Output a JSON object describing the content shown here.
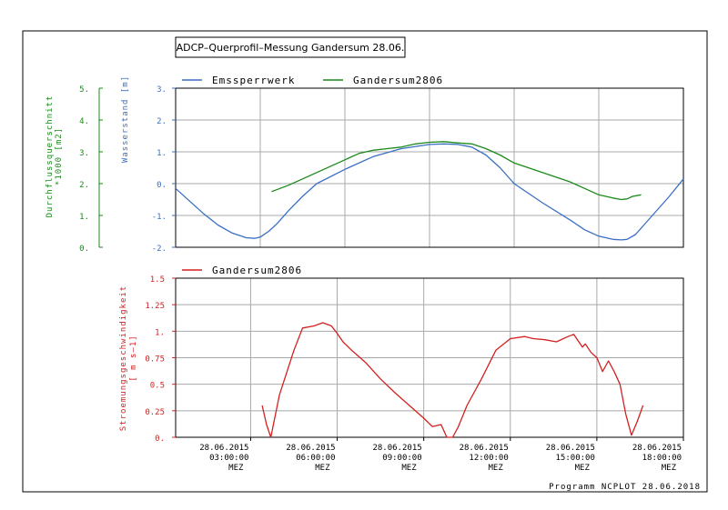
{
  "title": "ADCP–Querprofil–Messung  Gandersum  28.06.",
  "footer": "Programm NCPLOT  28.06.2018",
  "colors": {
    "blue": "#3a6fc4",
    "green": "#1a8a1a",
    "red": "#d42020",
    "grid": "#a8a8a8",
    "axis": "#000000"
  },
  "x_ticks": [
    {
      "date": "28.06.2015",
      "time": "03:00:00",
      "zone": "MEZ"
    },
    {
      "date": "28.06.2015",
      "time": "06:00:00",
      "zone": "MEZ"
    },
    {
      "date": "28.06.2015",
      "time": "09:00:00",
      "zone": "MEZ"
    },
    {
      "date": "28.06.2015",
      "time": "12:00:00",
      "zone": "MEZ"
    },
    {
      "date": "28.06.2015",
      "time": "15:00:00",
      "zone": "MEZ"
    },
    {
      "date": "28.06.2015",
      "time": "18:00:00",
      "zone": "MEZ"
    }
  ],
  "chart_data": [
    {
      "type": "line",
      "xlabel": "",
      "x_unit": "hours of 28.06.2015",
      "xlim": [
        0.0,
        18.0
      ],
      "ylabel": "Wasserstand [m]",
      "ylim": [
        -2,
        3
      ],
      "y_ticks": [
        "-2.",
        "-1.",
        "0.",
        "1.",
        "2.",
        "3."
      ],
      "y2label_line1": "Durchflussquerschnitt",
      "y2label_line2": "*1000 [m2]",
      "y2lim": [
        0,
        5
      ],
      "y2_ticks": [
        "0.",
        "1.",
        "2.",
        "3.",
        "4.",
        "5."
      ],
      "legend_position": "top-left",
      "grid": true,
      "series": [
        {
          "name": "Emssperrwerk",
          "color": "#3a6fc4",
          "axis": "left",
          "x": [
            0.0,
            0.5,
            1.0,
            1.5,
            2.0,
            2.5,
            2.8,
            3.0,
            3.3,
            3.6,
            4.0,
            4.5,
            5.0,
            6.0,
            7.0,
            8.0,
            9.0,
            9.5,
            10.0,
            10.5,
            11.0,
            11.5,
            12.0,
            13.0,
            14.0,
            14.5,
            15.0,
            15.5,
            15.8,
            16.0,
            16.3,
            16.6,
            17.0,
            17.5,
            18.0
          ],
          "y": [
            -0.15,
            -0.55,
            -0.95,
            -1.3,
            -1.55,
            -1.7,
            -1.72,
            -1.68,
            -1.5,
            -1.25,
            -0.85,
            -0.4,
            0.0,
            0.45,
            0.85,
            1.1,
            1.23,
            1.25,
            1.23,
            1.15,
            0.9,
            0.5,
            0.0,
            -0.6,
            -1.15,
            -1.45,
            -1.65,
            -1.75,
            -1.77,
            -1.75,
            -1.6,
            -1.3,
            -0.9,
            -0.4,
            0.15
          ]
        },
        {
          "name": "Gandersum2806",
          "color": "#1a8a1a",
          "axis": "left",
          "x": [
            3.4,
            4.0,
            4.5,
            5.0,
            5.5,
            6.0,
            6.5,
            7.0,
            7.5,
            8.0,
            8.5,
            9.0,
            9.5,
            10.0,
            10.5,
            11.0,
            11.5,
            12.0,
            12.5,
            13.0,
            13.5,
            14.0,
            14.5,
            15.0,
            15.5,
            15.8,
            16.0,
            16.2,
            16.5
          ],
          "y": [
            -0.25,
            -0.05,
            0.15,
            0.35,
            0.55,
            0.75,
            0.95,
            1.05,
            1.1,
            1.15,
            1.25,
            1.3,
            1.32,
            1.28,
            1.25,
            1.1,
            0.9,
            0.65,
            0.5,
            0.35,
            0.2,
            0.05,
            -0.15,
            -0.35,
            -0.45,
            -0.5,
            -0.48,
            -0.4,
            -0.35
          ]
        }
      ]
    },
    {
      "type": "line",
      "xlabel": "",
      "x_unit": "hours of 28.06.2015",
      "xlim": [
        0.4,
        18.0
      ],
      "ylabel_line1": "Stroemungsgeschwindigkeit",
      "ylabel_line2": "[ m s–1]",
      "ylim": [
        0,
        1.5
      ],
      "y_ticks": [
        "0.",
        "0.25",
        "0.5",
        "0.75",
        "1.",
        "1.25",
        "1.5"
      ],
      "legend_position": "top-left",
      "grid": true,
      "series": [
        {
          "name": "Gandersum2806",
          "color": "#d42020",
          "axis": "left",
          "x": [
            3.4,
            3.55,
            3.7,
            4.0,
            4.5,
            4.8,
            5.2,
            5.5,
            5.8,
            6.0,
            6.2,
            6.5,
            7.0,
            7.5,
            8.0,
            8.5,
            9.0,
            9.3,
            9.6,
            9.8,
            10.0,
            10.2,
            10.5,
            11.0,
            11.5,
            12.0,
            12.5,
            12.8,
            13.2,
            13.6,
            14.0,
            14.2,
            14.5,
            14.6,
            14.8,
            15.0,
            15.2,
            15.4,
            15.6,
            15.8,
            16.0,
            16.2,
            16.4,
            16.6
          ],
          "y": [
            0.3,
            0.12,
            0.0,
            0.4,
            0.82,
            1.03,
            1.05,
            1.08,
            1.05,
            0.98,
            0.9,
            0.82,
            0.7,
            0.55,
            0.42,
            0.3,
            0.18,
            0.1,
            0.12,
            0.0,
            0.0,
            0.1,
            0.3,
            0.55,
            0.82,
            0.93,
            0.95,
            0.93,
            0.92,
            0.9,
            0.95,
            0.97,
            0.85,
            0.88,
            0.8,
            0.75,
            0.62,
            0.72,
            0.62,
            0.5,
            0.22,
            0.02,
            0.15,
            0.3
          ]
        }
      ]
    }
  ]
}
